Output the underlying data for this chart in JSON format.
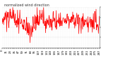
{
  "title": "normalized wind direction",
  "line_color": "#ff0000",
  "background_color": "#ffffff",
  "plot_bg_color": "#ffffff",
  "grid_color": "#bbbbbb",
  "ylim": [
    -1,
    360
  ],
  "yticks": [
    0,
    90,
    180,
    270,
    360
  ],
  "ytick_labels": [
    "",
    "",
    "",
    "",
    ""
  ],
  "num_points": 288,
  "base_value": 240,
  "noise_amplitude": 55,
  "title_fontsize": 3.5,
  "tick_fontsize": 2.8,
  "line_width": 0.5
}
